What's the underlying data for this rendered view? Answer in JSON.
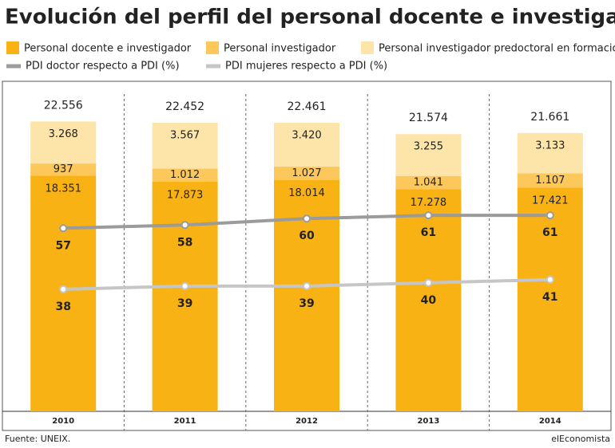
{
  "chart_data": {
    "type": "bar",
    "title": "Evolución del perfil del personal docente e investigador",
    "categories": [
      "2010",
      "2011",
      "2012",
      "2013",
      "2014"
    ],
    "ylim": [
      0,
      25000
    ],
    "y2lim": [
      0,
      100
    ],
    "series": [
      {
        "name": "Personal docente e investigador",
        "color": "#f9b214",
        "values": [
          18351,
          17873,
          18014,
          17278,
          17421
        ],
        "value_labels": [
          "18.351",
          "17.873",
          "18.014",
          "17.278",
          "17.421"
        ]
      },
      {
        "name": "Personal investigador",
        "color": "#fcc85c",
        "values": [
          937,
          1012,
          1027,
          1041,
          1107
        ],
        "value_labels": [
          "937",
          "1.012",
          "1.027",
          "1.041",
          "1.107"
        ]
      },
      {
        "name": "Personal investigador predoctoral en formación",
        "color": "#fde4a8",
        "values": [
          3268,
          3567,
          3420,
          3255,
          3133
        ],
        "value_labels": [
          "3.268",
          "3.567",
          "3.420",
          "3.255",
          "3.133"
        ]
      }
    ],
    "totals": [
      22556,
      22452,
      22461,
      21574,
      21661
    ],
    "total_labels": [
      "22.556",
      "22.452",
      "22.461",
      "21.574",
      "21.661"
    ],
    "lines": [
      {
        "name": "PDI doctor respecto a PDI (%)",
        "color": "#9b9b9b",
        "axis": "y2",
        "values": [
          57,
          58,
          60,
          61,
          61
        ]
      },
      {
        "name": "PDI mujeres respecto a PDI (%)",
        "color": "#c6c6c6",
        "axis": "y2",
        "values": [
          38,
          39,
          39,
          40,
          41
        ]
      }
    ],
    "source": "Fuente: UNEIX.",
    "credit": "elEconomista"
  }
}
